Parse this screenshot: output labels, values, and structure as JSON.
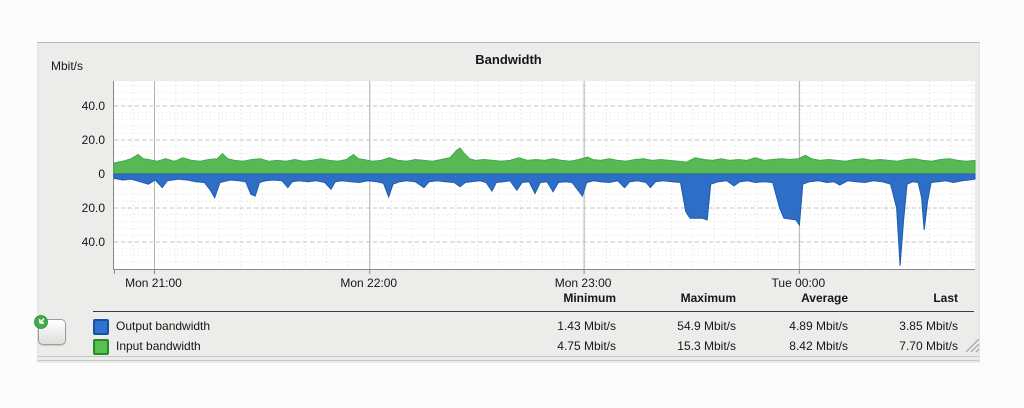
{
  "widget": {
    "title": "Bandwidth",
    "unit_label": "Mbit/s"
  },
  "chart_data": {
    "type": "area",
    "title": "Bandwidth",
    "ylabel": "Mbit/s",
    "grid": true,
    "legend_position": "bottom-left",
    "x_axis": {
      "tick_labels": [
        "Mon 21:00",
        "Mon 22:00",
        "Mon 23:00",
        "Tue 00:00"
      ],
      "tick_percents": [
        4.7,
        29.7,
        54.6,
        79.6
      ]
    },
    "y_axis": {
      "tick_values": [
        40,
        20,
        0,
        -20,
        -40
      ],
      "tick_labels": [
        "40.0",
        "20.0",
        "0",
        "20.0",
        "40.0"
      ],
      "range_mbit": [
        -55.5,
        55.5
      ],
      "orientation_note": "Input bandwidth plotted above zero, Output bandwidth mirrored below zero"
    },
    "series": [
      {
        "name": "Input bandwidth",
        "color": "#57b956",
        "edge_color": "#46a847",
        "direction": "up",
        "x_unit": "percent_of_width",
        "y_unit": "Mbit/s",
        "points": [
          [
            0,
            6.5
          ],
          [
            1,
            7.5
          ],
          [
            2,
            9
          ],
          [
            2.8,
            11.5
          ],
          [
            3.4,
            9
          ],
          [
            4,
            8.5
          ],
          [
            5,
            7.5
          ],
          [
            6,
            9
          ],
          [
            7,
            7.5
          ],
          [
            8,
            9.5
          ],
          [
            9,
            8
          ],
          [
            10,
            7.5
          ],
          [
            11,
            8.5
          ],
          [
            12,
            9
          ],
          [
            12.6,
            12
          ],
          [
            13.2,
            9
          ],
          [
            14,
            8
          ],
          [
            15,
            7.5
          ],
          [
            16,
            8.5
          ],
          [
            17,
            9
          ],
          [
            18,
            7.5
          ],
          [
            19,
            8
          ],
          [
            20,
            7.5
          ],
          [
            21,
            8.5
          ],
          [
            22,
            7.5
          ],
          [
            23,
            8
          ],
          [
            24,
            9
          ],
          [
            25,
            8
          ],
          [
            26,
            7.5
          ],
          [
            27,
            8.5
          ],
          [
            27.8,
            11.5
          ],
          [
            28.4,
            9
          ],
          [
            29,
            8.5
          ],
          [
            30,
            7.5
          ],
          [
            31,
            8
          ],
          [
            32,
            9.5
          ],
          [
            33,
            8
          ],
          [
            34,
            7.5
          ],
          [
            35,
            8.5
          ],
          [
            36,
            8
          ],
          [
            37,
            7.5
          ],
          [
            38,
            8.5
          ],
          [
            39,
            9.5
          ],
          [
            39.8,
            14
          ],
          [
            40.2,
            15.3
          ],
          [
            40.7,
            12
          ],
          [
            41.3,
            9
          ],
          [
            42,
            8
          ],
          [
            43,
            8.5
          ],
          [
            44,
            8
          ],
          [
            45,
            7.5
          ],
          [
            46,
            8
          ],
          [
            47,
            9.5
          ],
          [
            48,
            8
          ],
          [
            49,
            8.5
          ],
          [
            50,
            8
          ],
          [
            51,
            9
          ],
          [
            52,
            8
          ],
          [
            53,
            7.5
          ],
          [
            54,
            8.5
          ],
          [
            55,
            10
          ],
          [
            55.6,
            8.5
          ],
          [
            56.5,
            8
          ],
          [
            57.5,
            9
          ],
          [
            58.5,
            8
          ],
          [
            59.5,
            7.5
          ],
          [
            60.5,
            8.5
          ],
          [
            61.5,
            9
          ],
          [
            62.5,
            8
          ],
          [
            63.5,
            8.5
          ],
          [
            64.5,
            8
          ],
          [
            65.5,
            7.5
          ],
          [
            66.5,
            7
          ],
          [
            67.5,
            9.5
          ],
          [
            68.5,
            8.5
          ],
          [
            69.5,
            8
          ],
          [
            70.5,
            9
          ],
          [
            71.5,
            8
          ],
          [
            72.5,
            8.5
          ],
          [
            73.5,
            8
          ],
          [
            74.5,
            9.5
          ],
          [
            75.5,
            8
          ],
          [
            76.5,
            8.5
          ],
          [
            77.5,
            9
          ],
          [
            78.5,
            8.5
          ],
          [
            79.5,
            9
          ],
          [
            80.3,
            11
          ],
          [
            81,
            9
          ],
          [
            82,
            8
          ],
          [
            83,
            8.5
          ],
          [
            84,
            8
          ],
          [
            85,
            7.5
          ],
          [
            86,
            8.5
          ],
          [
            87,
            9
          ],
          [
            88,
            8
          ],
          [
            89,
            8.5
          ],
          [
            90,
            8
          ],
          [
            91,
            7.5
          ],
          [
            92,
            8.5
          ],
          [
            93,
            9
          ],
          [
            94,
            8
          ],
          [
            95,
            7.5
          ],
          [
            96,
            8.5
          ],
          [
            97,
            9
          ],
          [
            98,
            8
          ],
          [
            99,
            7.5
          ],
          [
            100,
            8
          ]
        ]
      },
      {
        "name": "Output bandwidth",
        "color": "#2e6ec6",
        "edge_color": "#1f5cae",
        "direction": "down",
        "x_unit": "percent_of_width",
        "y_unit": "Mbit/s",
        "points": [
          [
            0,
            2.5
          ],
          [
            1,
            3.5
          ],
          [
            2,
            3
          ],
          [
            3,
            4.5
          ],
          [
            4,
            6
          ],
          [
            4.8,
            3.5
          ],
          [
            5.6,
            8
          ],
          [
            6.2,
            4
          ],
          [
            7.5,
            3
          ],
          [
            8.5,
            3.5
          ],
          [
            9.5,
            4.5
          ],
          [
            10.5,
            5
          ],
          [
            11.2,
            9.5
          ],
          [
            11.7,
            14
          ],
          [
            12.3,
            5
          ],
          [
            13.5,
            3.5
          ],
          [
            14.5,
            4
          ],
          [
            15.3,
            4.5
          ],
          [
            15.9,
            12
          ],
          [
            16.4,
            13
          ],
          [
            16.9,
            5
          ],
          [
            17.6,
            4
          ],
          [
            18.5,
            3.5
          ],
          [
            19.5,
            4
          ],
          [
            20.2,
            8
          ],
          [
            20.7,
            4.5
          ],
          [
            21.5,
            4
          ],
          [
            22.5,
            4.5
          ],
          [
            23.5,
            4
          ],
          [
            24.5,
            5
          ],
          [
            25.2,
            9
          ],
          [
            25.7,
            4.5
          ],
          [
            26.5,
            4
          ],
          [
            27.5,
            4.5
          ],
          [
            28.5,
            5
          ],
          [
            29.5,
            4
          ],
          [
            30.5,
            4.5
          ],
          [
            31.3,
            5.5
          ],
          [
            31.9,
            13.5
          ],
          [
            32.4,
            6
          ],
          [
            33.2,
            4.5
          ],
          [
            34,
            4
          ],
          [
            35,
            4.5
          ],
          [
            36,
            8
          ],
          [
            36.6,
            4.5
          ],
          [
            37.5,
            4
          ],
          [
            38.5,
            4.5
          ],
          [
            39.5,
            5
          ],
          [
            40.2,
            7.5
          ],
          [
            40.8,
            5
          ],
          [
            41.5,
            4.5
          ],
          [
            42.5,
            4
          ],
          [
            43.2,
            5
          ],
          [
            43.9,
            10
          ],
          [
            44.4,
            5
          ],
          [
            45.2,
            4.5
          ],
          [
            46,
            4
          ],
          [
            46.8,
            9.5
          ],
          [
            47.4,
            5
          ],
          [
            48.2,
            4.5
          ],
          [
            48.9,
            11.5
          ],
          [
            49.5,
            5
          ],
          [
            50.3,
            4.5
          ],
          [
            51,
            10.5
          ],
          [
            51.6,
            5
          ],
          [
            52.4,
            4.5
          ],
          [
            53.2,
            5
          ],
          [
            54.4,
            13
          ],
          [
            54.9,
            5
          ],
          [
            55.7,
            4
          ],
          [
            56.5,
            4.5
          ],
          [
            57.5,
            5
          ],
          [
            58.5,
            4
          ],
          [
            59.3,
            8
          ],
          [
            59.9,
            4.5
          ],
          [
            60.8,
            4
          ],
          [
            61.8,
            5
          ],
          [
            62.3,
            8
          ],
          [
            62.9,
            4.5
          ],
          [
            63.8,
            4
          ],
          [
            64.8,
            4.5
          ],
          [
            65.8,
            5
          ],
          [
            66.4,
            22
          ],
          [
            66.9,
            26
          ],
          [
            68.3,
            26
          ],
          [
            68.9,
            27
          ],
          [
            69.3,
            6
          ],
          [
            70.2,
            4.5
          ],
          [
            71.2,
            4
          ],
          [
            72,
            7
          ],
          [
            72.7,
            4.5
          ],
          [
            73.6,
            4
          ],
          [
            74.5,
            5
          ],
          [
            75.5,
            4.5
          ],
          [
            76.5,
            5
          ],
          [
            77.3,
            20
          ],
          [
            77.8,
            26
          ],
          [
            79.2,
            27
          ],
          [
            79.6,
            30
          ],
          [
            80,
            6
          ],
          [
            80.8,
            4.5
          ],
          [
            81.8,
            4
          ],
          [
            82.8,
            5
          ],
          [
            83.6,
            4.5
          ],
          [
            84.3,
            6.5
          ],
          [
            85.2,
            4
          ],
          [
            86.2,
            4.5
          ],
          [
            87.2,
            5
          ],
          [
            88.2,
            4
          ],
          [
            89.2,
            4.5
          ],
          [
            90.2,
            6
          ],
          [
            90.9,
            20
          ],
          [
            91.3,
            54
          ],
          [
            91.7,
            28
          ],
          [
            92.1,
            6
          ],
          [
            92.8,
            4.5
          ],
          [
            93.4,
            5
          ],
          [
            93.8,
            14
          ],
          [
            94.1,
            33
          ],
          [
            94.5,
            16
          ],
          [
            94.9,
            5
          ],
          [
            95.7,
            4.5
          ],
          [
            96.6,
            4
          ],
          [
            97.5,
            5
          ],
          [
            98.5,
            4
          ],
          [
            99.3,
            3.5
          ],
          [
            100,
            3
          ]
        ]
      }
    ]
  },
  "table": {
    "headers": [
      "Minimum",
      "Maximum",
      "Average",
      "Last"
    ],
    "rows": [
      {
        "label": "Output bandwidth",
        "swatch_color": "#2f72cd",
        "swatch_border": "#184f9e",
        "minimum": "1.43 Mbit/s",
        "maximum": "54.9 Mbit/s",
        "average": "4.89 Mbit/s",
        "last": "3.85 Mbit/s"
      },
      {
        "label": "Input bandwidth",
        "swatch_color": "#55c24f",
        "swatch_border": "#2e8631",
        "minimum": "4.75 Mbit/s",
        "maximum": "15.3 Mbit/s",
        "average": "8.42 Mbit/s",
        "last": "7.70 Mbit/s"
      }
    ]
  },
  "icons": {
    "export_arrow": "green-circle-arrow",
    "resize_grip": "diagonal-grip-lines"
  },
  "colors": {
    "panel_bg": "#ecedea",
    "plot_bg": "#ffffff",
    "grid_minor": "#dedede",
    "grid_major": "#c4c4c4",
    "grid_hour": "#b2b2b2",
    "axis": "#8a8a8a",
    "text": "#161616"
  }
}
